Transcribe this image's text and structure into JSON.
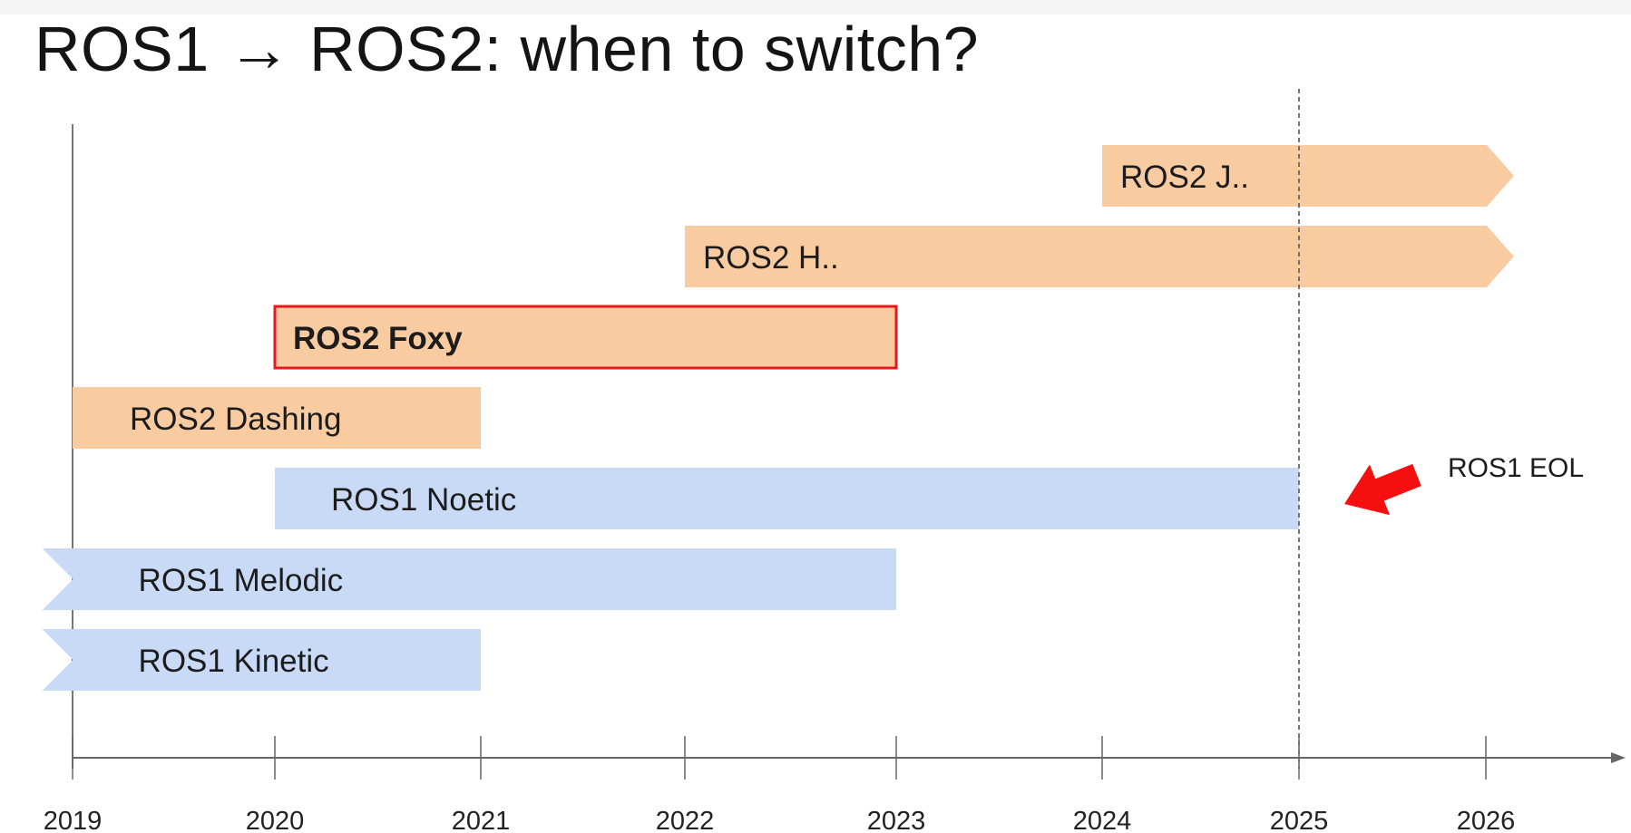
{
  "slide": {
    "title": "ROS1 → ROS2: when to switch?"
  },
  "colors": {
    "ros2_fill": "#f8cba1",
    "ros1_fill": "#c9daf7",
    "highlight_border": "#e5181b",
    "eol_arrow": "#f50f0f",
    "axis": "#666666",
    "eol_line": "#555555"
  },
  "timeline": {
    "years": [
      "2019",
      "2020",
      "2021",
      "2022",
      "2023",
      "2024",
      "2025",
      "2026"
    ],
    "bars": [
      {
        "label": "ROS2 J..",
        "start": 2024,
        "end": 2026.15,
        "family": "ros2",
        "left": "flat",
        "right": "arrow",
        "highlight": false
      },
      {
        "label": "ROS2 H..",
        "start": 2022,
        "end": 2026.15,
        "family": "ros2",
        "left": "flat",
        "right": "arrow",
        "highlight": false
      },
      {
        "label": "ROS2 Foxy",
        "start": 2020,
        "end": 2023,
        "family": "ros2",
        "left": "flat",
        "right": "flat",
        "highlight": true
      },
      {
        "label": "ROS2 Dashing",
        "start": 2019,
        "end": 2021,
        "family": "ros2",
        "left": "flat",
        "right": "flat",
        "highlight": false
      },
      {
        "label": "ROS1 Noetic",
        "start": 2020,
        "end": 2025,
        "family": "ros1",
        "left": "flat",
        "right": "flat",
        "highlight": false
      },
      {
        "label": "ROS1 Melodic",
        "start": 2018.85,
        "end": 2023,
        "family": "ros1",
        "left": "notch",
        "right": "flat",
        "highlight": false
      },
      {
        "label": "ROS1 Kinetic",
        "start": 2018.85,
        "end": 2021,
        "family": "ros1",
        "left": "notch",
        "right": "flat",
        "highlight": false
      }
    ],
    "eol": {
      "year": 2025,
      "label": "ROS1 EOL"
    }
  }
}
